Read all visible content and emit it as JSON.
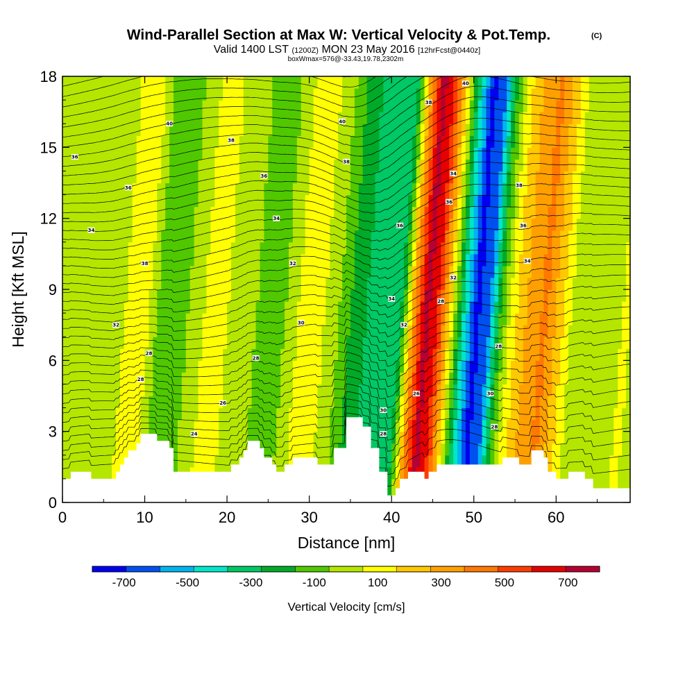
{
  "title": {
    "main": "Wind-Parallel Section at Max W: Vertical Velocity & Pot.Temp.",
    "copyright": "(C)",
    "valid_prefix": "Valid 1400 LST",
    "valid_utc": "(1200Z)",
    "valid_date": "MON 23 May 2016",
    "forecast": "[12hrFcst@0440z]",
    "box_info": "boxWmax=576@-33.43,19.78,2302m"
  },
  "chart_data": {
    "type": "heatmap",
    "title": "Wind-Parallel Section at Max W: Vertical Velocity & Pot.Temp.",
    "xlabel": "Distance [nm]",
    "ylabel": "Height [Kft MSL]",
    "xlim": [
      0,
      69
    ],
    "ylim": [
      0,
      18
    ],
    "x_ticks": [
      0,
      10,
      20,
      30,
      40,
      50,
      60
    ],
    "y_ticks": [
      0,
      3,
      6,
      9,
      12,
      15,
      18
    ],
    "colorbar": {
      "label": "Vertical Velocity [cm/s]",
      "bounds": [
        -800,
        800
      ],
      "ticks": [
        -700,
        -500,
        -300,
        -100,
        100,
        300,
        500,
        700
      ],
      "colors": [
        "#0000f0",
        "#0050f0",
        "#00b4f0",
        "#00e6c8",
        "#00c864",
        "#00aa28",
        "#50c800",
        "#b4e600",
        "#ffff00",
        "#ffc800",
        "#ffa000",
        "#ff7800",
        "#ff3c00",
        "#e60000",
        "#b40032"
      ]
    },
    "velocity_columns": [
      {
        "x": 0,
        "w": 0
      },
      {
        "x": 2,
        "w": 20
      },
      {
        "x": 4,
        "w": -20
      },
      {
        "x": 6,
        "w": 60
      },
      {
        "x": 8,
        "w": 140
      },
      {
        "x": 10,
        "w": -80
      },
      {
        "x": 12,
        "w": -160
      },
      {
        "x": 14,
        "w": -20
      },
      {
        "x": 16,
        "w": 80
      },
      {
        "x": 18,
        "w": 60
      },
      {
        "x": 20,
        "w": 20
      },
      {
        "x": 22,
        "w": -60
      },
      {
        "x": 24,
        "w": -120
      },
      {
        "x": 26,
        "w": -20
      },
      {
        "x": 28,
        "w": 140
      },
      {
        "x": 30,
        "w": 60
      },
      {
        "x": 32,
        "w": -60
      },
      {
        "x": 34,
        "w": -220
      },
      {
        "x": 36,
        "w": -300
      },
      {
        "x": 38,
        "w": -340
      },
      {
        "x": 39.5,
        "w": -260
      },
      {
        "x": 41,
        "w": 340
      },
      {
        "x": 42.5,
        "w": 740
      },
      {
        "x": 44,
        "w": 560
      },
      {
        "x": 45.5,
        "w": 120
      },
      {
        "x": 47,
        "w": -380
      },
      {
        "x": 48.5,
        "w": -720
      },
      {
        "x": 50,
        "w": -640
      },
      {
        "x": 51.5,
        "w": -160
      },
      {
        "x": 53,
        "w": 120
      },
      {
        "x": 55,
        "w": 300
      },
      {
        "x": 57,
        "w": 400
      },
      {
        "x": 59,
        "w": 180
      },
      {
        "x": 61,
        "w": -40
      },
      {
        "x": 63,
        "w": -40
      },
      {
        "x": 65,
        "w": 40
      },
      {
        "x": 67,
        "w": 60
      },
      {
        "x": 69,
        "w": 20
      }
    ],
    "terrain": [
      [
        0,
        1.0
      ],
      [
        1,
        1.0
      ],
      [
        1,
        1.3
      ],
      [
        3.5,
        1.3
      ],
      [
        3.5,
        1.0
      ],
      [
        6.5,
        1.0
      ],
      [
        6.5,
        1.3
      ],
      [
        7,
        1.3
      ],
      [
        7,
        1.6
      ],
      [
        7.5,
        1.6
      ],
      [
        7.5,
        1.9
      ],
      [
        8,
        1.9
      ],
      [
        8,
        2.2
      ],
      [
        9,
        2.2
      ],
      [
        9,
        2.5
      ],
      [
        9.5,
        2.5
      ],
      [
        9.5,
        2.9
      ],
      [
        11.5,
        2.9
      ],
      [
        11.5,
        2.6
      ],
      [
        13,
        2.6
      ],
      [
        13,
        2.3
      ],
      [
        13.5,
        2.3
      ],
      [
        13.5,
        1.3
      ],
      [
        20.5,
        1.3
      ],
      [
        20.5,
        1.6
      ],
      [
        21.5,
        1.6
      ],
      [
        21.5,
        1.9
      ],
      [
        22,
        1.9
      ],
      [
        22,
        2.2
      ],
      [
        22.5,
        2.2
      ],
      [
        22.5,
        2.6
      ],
      [
        24,
        2.6
      ],
      [
        24,
        2.3
      ],
      [
        24.5,
        2.3
      ],
      [
        24.5,
        1.9
      ],
      [
        25.5,
        1.9
      ],
      [
        25.5,
        1.6
      ],
      [
        26,
        1.6
      ],
      [
        26,
        1.3
      ],
      [
        27,
        1.3
      ],
      [
        27,
        1.6
      ],
      [
        28,
        1.6
      ],
      [
        28,
        1.9
      ],
      [
        31,
        1.9
      ],
      [
        31,
        1.6
      ],
      [
        33,
        1.6
      ],
      [
        33,
        2.3
      ],
      [
        34.5,
        2.3
      ],
      [
        34.5,
        3.6
      ],
      [
        36.5,
        3.6
      ],
      [
        36.5,
        3.2
      ],
      [
        37.5,
        3.2
      ],
      [
        37.5,
        2.3
      ],
      [
        38.5,
        2.3
      ],
      [
        38.5,
        1.3
      ],
      [
        39.5,
        1.3
      ],
      [
        39.5,
        0.3
      ],
      [
        40.5,
        0.3
      ],
      [
        40.5,
        0.6
      ],
      [
        41,
        0.6
      ],
      [
        41,
        1.0
      ],
      [
        42,
        1.0
      ],
      [
        42,
        1.3
      ],
      [
        44,
        1.3
      ],
      [
        44,
        1.0
      ],
      [
        44.5,
        1.0
      ],
      [
        44.5,
        1.3
      ],
      [
        45.5,
        1.3
      ],
      [
        45.5,
        1.6
      ],
      [
        53.5,
        1.6
      ],
      [
        53.5,
        1.9
      ],
      [
        55.5,
        1.9
      ],
      [
        55.5,
        1.6
      ],
      [
        57,
        1.6
      ],
      [
        57,
        2.2
      ],
      [
        58.5,
        2.2
      ],
      [
        58.5,
        1.9
      ],
      [
        59,
        1.9
      ],
      [
        59,
        1.3
      ],
      [
        60,
        1.3
      ],
      [
        60,
        1.0
      ],
      [
        61.5,
        1.0
      ],
      [
        61.5,
        1.3
      ],
      [
        63.5,
        1.3
      ],
      [
        63.5,
        1.0
      ],
      [
        64.5,
        1.0
      ],
      [
        64.5,
        0.6
      ],
      [
        69,
        0.6
      ]
    ],
    "theta_levels": 42,
    "contour_labels": [
      {
        "text": "36",
        "x": 1.5,
        "y": 14.6
      },
      {
        "text": "34",
        "x": 3.5,
        "y": 11.5
      },
      {
        "text": "32",
        "x": 6.5,
        "y": 7.5
      },
      {
        "text": "28",
        "x": 10.5,
        "y": 6.3
      },
      {
        "text": "28",
        "x": 9.5,
        "y": 5.2
      },
      {
        "text": "40",
        "x": 13,
        "y": 16.0
      },
      {
        "text": "38",
        "x": 10,
        "y": 10.1
      },
      {
        "text": "36",
        "x": 8,
        "y": 13.3
      },
      {
        "text": "24",
        "x": 16,
        "y": 2.9
      },
      {
        "text": "26",
        "x": 19.5,
        "y": 4.2
      },
      {
        "text": "38",
        "x": 20.5,
        "y": 15.3
      },
      {
        "text": "36",
        "x": 24.5,
        "y": 13.8
      },
      {
        "text": "34",
        "x": 26,
        "y": 12.0
      },
      {
        "text": "28",
        "x": 23.5,
        "y": 6.1
      },
      {
        "text": "32",
        "x": 28,
        "y": 10.1
      },
      {
        "text": "30",
        "x": 29,
        "y": 7.6
      },
      {
        "text": "40",
        "x": 34,
        "y": 16.1
      },
      {
        "text": "38",
        "x": 34.5,
        "y": 14.4
      },
      {
        "text": "34",
        "x": 40,
        "y": 8.6
      },
      {
        "text": "32",
        "x": 41.5,
        "y": 7.5
      },
      {
        "text": "30",
        "x": 39,
        "y": 3.9
      },
      {
        "text": "28",
        "x": 39,
        "y": 2.9
      },
      {
        "text": "36",
        "x": 41,
        "y": 11.7
      },
      {
        "text": "38",
        "x": 44.5,
        "y": 16.9
      },
      {
        "text": "26",
        "x": 43,
        "y": 4.6
      },
      {
        "text": "28",
        "x": 46,
        "y": 8.5
      },
      {
        "text": "36",
        "x": 47,
        "y": 12.7
      },
      {
        "text": "34",
        "x": 47.5,
        "y": 13.9
      },
      {
        "text": "32",
        "x": 47.5,
        "y": 9.5
      },
      {
        "text": "40",
        "x": 49,
        "y": 17.7
      },
      {
        "text": "28",
        "x": 53,
        "y": 6.6
      },
      {
        "text": "30",
        "x": 52,
        "y": 4.6
      },
      {
        "text": "28",
        "x": 52.5,
        "y": 3.2
      },
      {
        "text": "38",
        "x": 55.5,
        "y": 13.4
      },
      {
        "text": "36",
        "x": 56,
        "y": 11.7
      },
      {
        "text": "34",
        "x": 56.5,
        "y": 10.2
      }
    ]
  }
}
